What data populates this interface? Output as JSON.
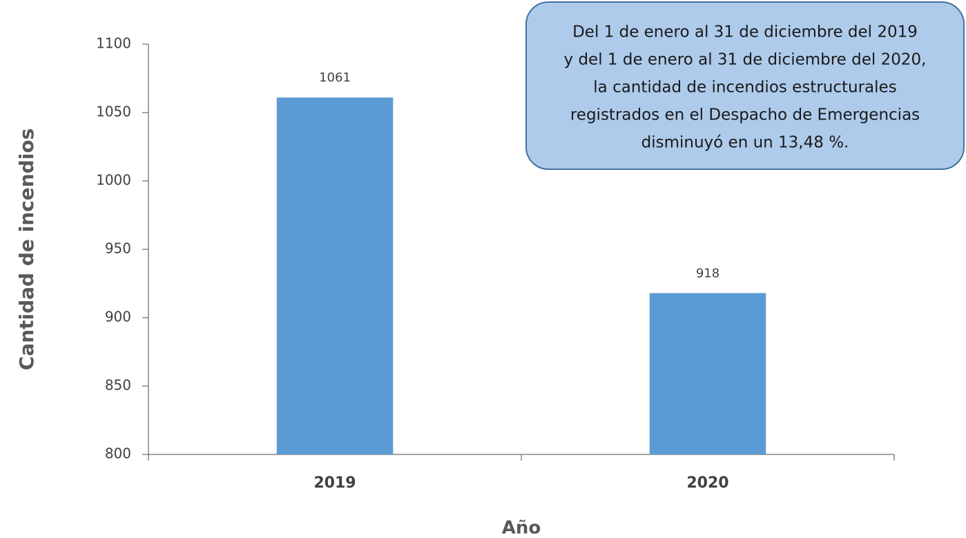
{
  "chart_data": {
    "type": "bar",
    "categories": [
      "2019",
      "2020"
    ],
    "values": [
      1061,
      918
    ],
    "color": "#5b9bd5",
    "ylim": [
      800,
      1100
    ],
    "yticks": [
      800,
      850,
      900,
      950,
      1000,
      1050,
      1100
    ],
    "xlabel": "Año",
    "ylabel": "Cantidad de incendios",
    "annotation": [
      "Del 1 de enero al 31 de diciembre del 2019",
      "y del 1 de enero al 31 de diciembre del 2020,",
      "la cantidad de incendios estructurales",
      "registrados en el Despacho de Emergencias",
      "disminuyó en un 13,48 %."
    ],
    "grid": false
  }
}
